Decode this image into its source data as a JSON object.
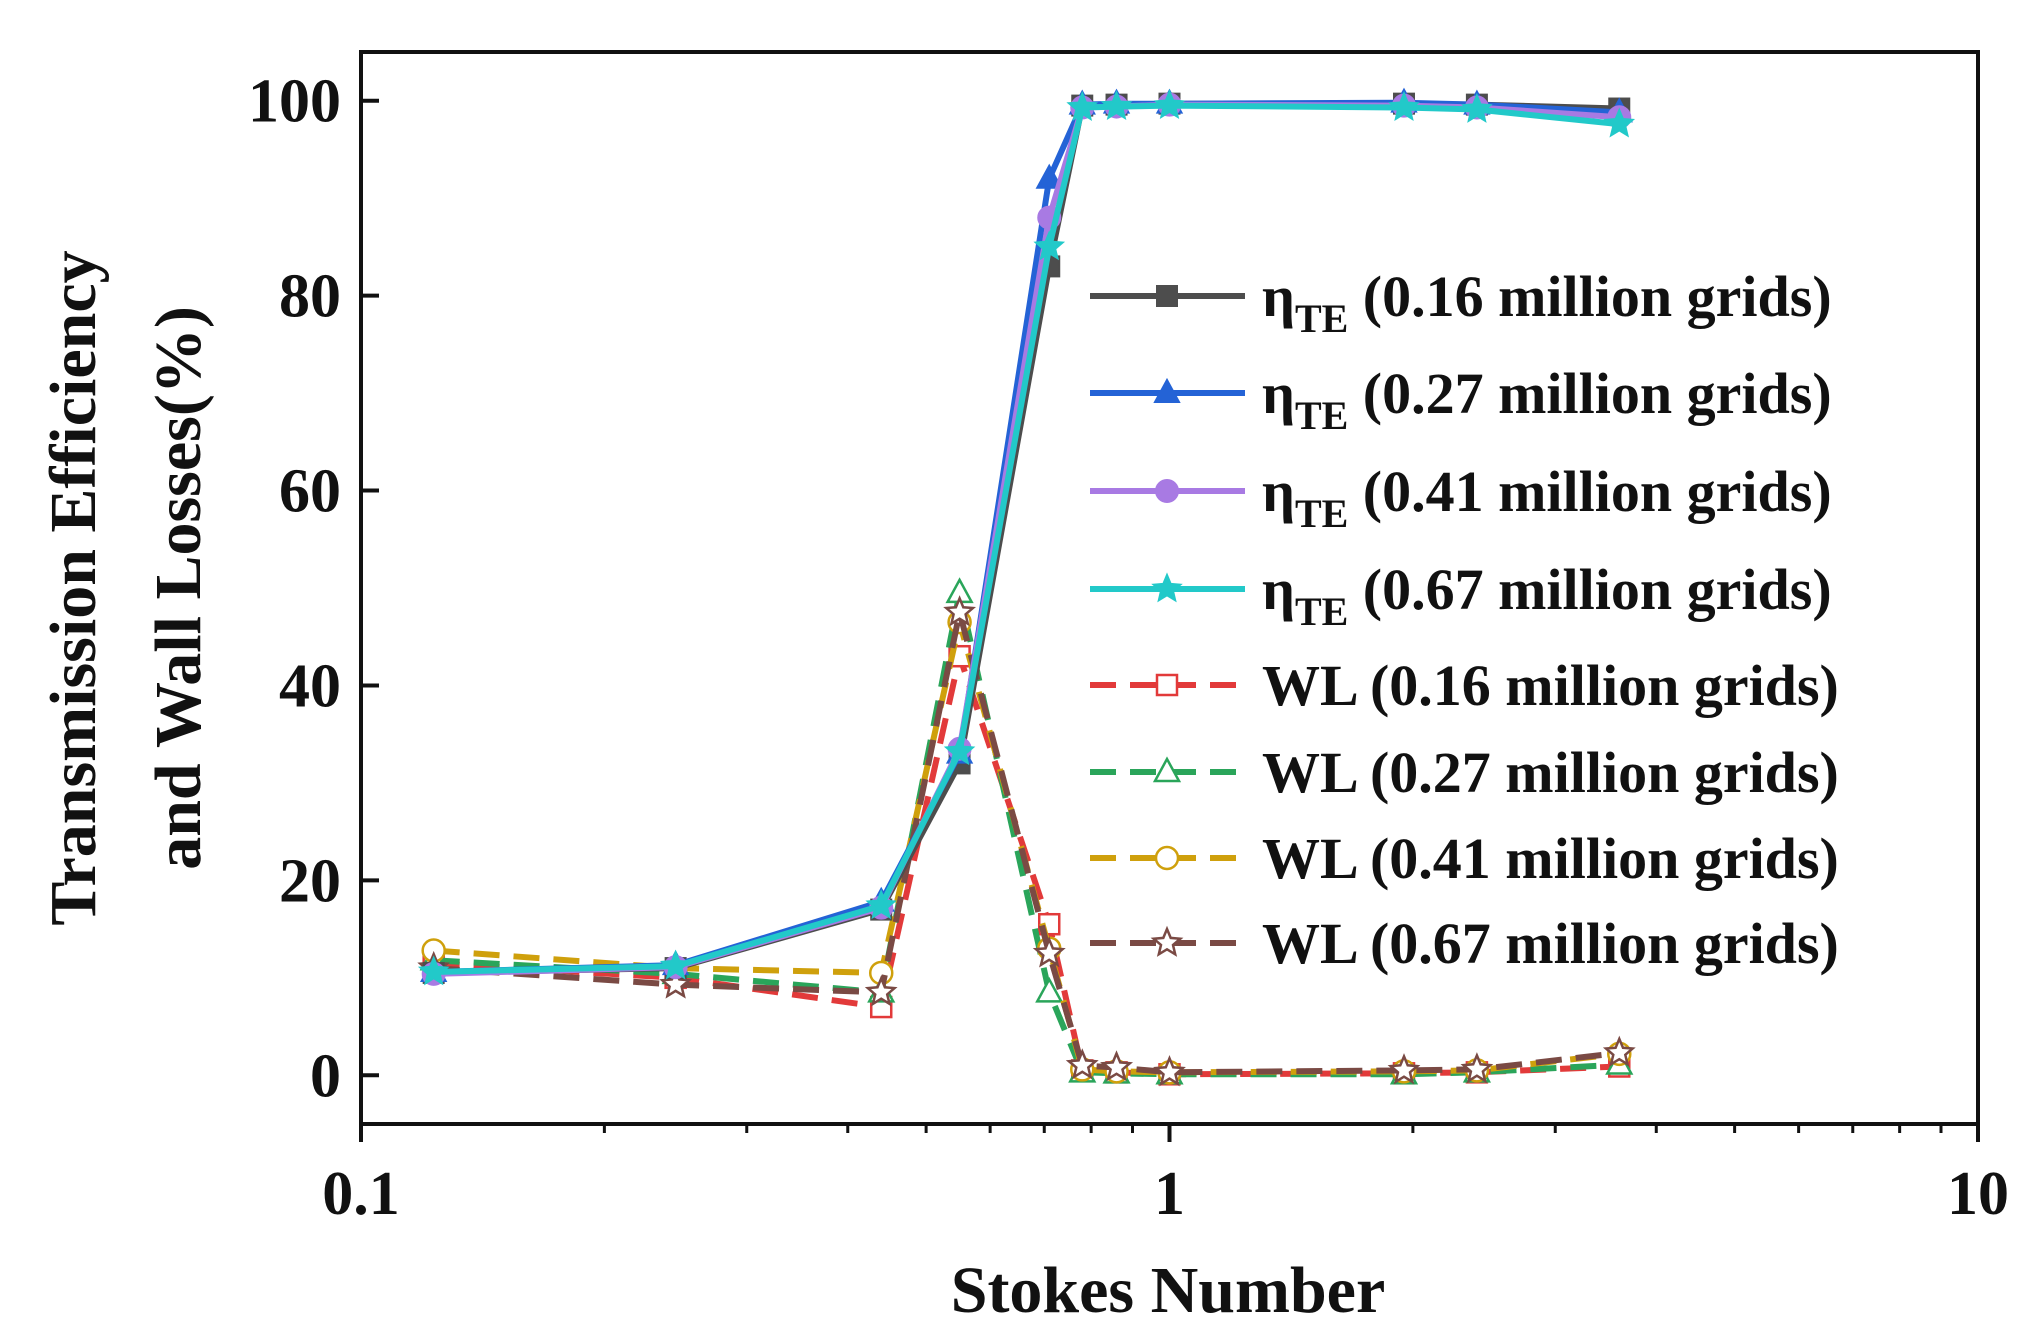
{
  "chart_data": {
    "type": "line",
    "xscale": "log",
    "xlim": [
      0.1,
      10
    ],
    "ylim": [
      -5,
      105
    ],
    "xlabel": "Stokes Number",
    "ylabel_line1": "Transmission Efficiency",
    "ylabel_line2": "and Wall Losses(%)",
    "xticks": [
      {
        "value": 0.1,
        "label": "0.1"
      },
      {
        "value": 1,
        "label": "1"
      },
      {
        "value": 10,
        "label": "10"
      }
    ],
    "yticks": [
      {
        "value": 0,
        "label": "0"
      },
      {
        "value": 20,
        "label": "20"
      },
      {
        "value": 40,
        "label": "40"
      },
      {
        "value": 60,
        "label": "60"
      },
      {
        "value": 80,
        "label": "80"
      },
      {
        "value": 100,
        "label": "100"
      }
    ],
    "x": [
      0.123,
      0.245,
      0.44,
      0.55,
      0.71,
      0.78,
      0.86,
      1.0,
      1.95,
      2.4,
      3.6
    ],
    "series": [
      {
        "name": "(0.16 million grids)",
        "symbol": "η",
        "subscript": "TE",
        "color": "#4d4d4d",
        "marker": "square",
        "filled": true,
        "dash": false,
        "values": [
          10.5,
          11.0,
          17.0,
          32.0,
          83.0,
          99.5,
          99.6,
          99.7,
          99.7,
          99.6,
          99.2
        ]
      },
      {
        "name": "(0.27 million grids)",
        "symbol": "η",
        "subscript": "TE",
        "color": "#2463d6",
        "marker": "triangle",
        "filled": true,
        "dash": false,
        "values": [
          10.6,
          11.3,
          17.8,
          33.0,
          92.0,
          99.6,
          99.7,
          99.7,
          99.8,
          99.6,
          98.8
        ]
      },
      {
        "name": "(0.41 million grids)",
        "symbol": "η",
        "subscript": "TE",
        "color": "#a87ae3",
        "marker": "circle",
        "filled": true,
        "dash": false,
        "values": [
          10.4,
          11.1,
          17.2,
          33.5,
          88.0,
          99.3,
          99.4,
          99.6,
          99.5,
          99.3,
          98.3
        ]
      },
      {
        "name": "(0.67 million grids)",
        "symbol": "η",
        "subscript": "TE",
        "color": "#22c9c9",
        "marker": "star",
        "filled": true,
        "dash": false,
        "values": [
          10.6,
          11.2,
          17.4,
          33.2,
          85.0,
          99.3,
          99.4,
          99.5,
          99.3,
          99.1,
          97.6
        ]
      },
      {
        "name": "WL (0.16 million grids)",
        "symbol": "",
        "subscript": "",
        "color": "#e23a3a",
        "marker": "square",
        "filled": false,
        "dash": true,
        "values": [
          11.5,
          10.0,
          7.0,
          43.0,
          15.5,
          0.5,
          0.3,
          0.1,
          0.2,
          0.3,
          0.9
        ]
      },
      {
        "name": "WL (0.27 million grids)",
        "symbol": "",
        "subscript": "",
        "color": "#2aa55a",
        "marker": "triangle",
        "filled": false,
        "dash": true,
        "values": [
          11.8,
          10.4,
          8.5,
          49.5,
          8.5,
          0.3,
          0.2,
          0.1,
          0.1,
          0.3,
          1.1
        ]
      },
      {
        "name": "WL (0.41 million grids)",
        "symbol": "",
        "subscript": "",
        "color": "#cfa00c",
        "marker": "circle",
        "filled": false,
        "dash": true,
        "values": [
          12.8,
          11.0,
          10.5,
          46.5,
          13.0,
          0.6,
          0.4,
          0.3,
          0.4,
          0.5,
          2.2
        ]
      },
      {
        "name": "WL (0.67 million grids)",
        "symbol": "",
        "subscript": "",
        "color": "#7a4a44",
        "marker": "star",
        "filled": false,
        "dash": true,
        "values": [
          11.0,
          9.3,
          8.5,
          47.5,
          12.5,
          1.0,
          0.8,
          0.3,
          0.5,
          0.6,
          2.3
        ]
      }
    ]
  }
}
